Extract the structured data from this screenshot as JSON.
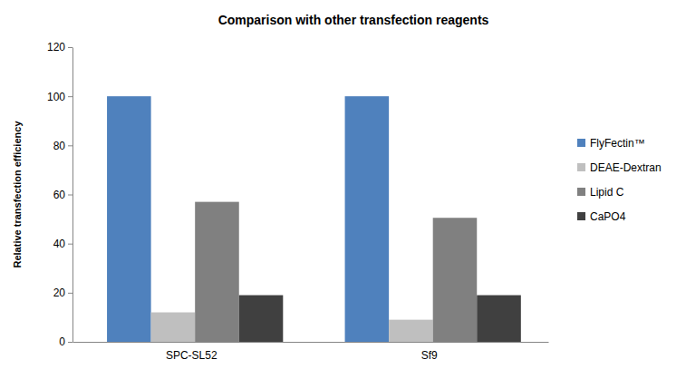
{
  "chart_data": {
    "type": "bar",
    "title": "Comparison with other transfection reagents",
    "ylabel": "Relative transfection efficiency",
    "categories": [
      "SPC-SL52",
      "Sf9"
    ],
    "series": [
      {
        "name": "FlyFectin™",
        "color": "#4f81bd",
        "values": [
          100,
          100
        ]
      },
      {
        "name": "DEAE-Dextran",
        "color": "#bfbfbf",
        "values": [
          12,
          9
        ]
      },
      {
        "name": "Lipid C",
        "color": "#808080",
        "values": [
          57,
          50.5
        ]
      },
      {
        "name": "CaPO4",
        "color": "#404040",
        "values": [
          19,
          19
        ]
      }
    ],
    "ylim": [
      0,
      120
    ],
    "yticks": [
      0,
      20,
      40,
      60,
      80,
      100,
      120
    ],
    "grid": false,
    "legend": "right"
  }
}
